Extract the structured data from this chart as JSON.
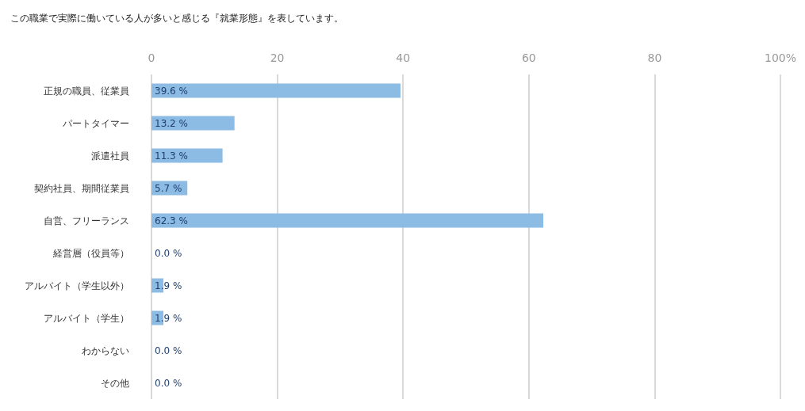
{
  "chart_data": {
    "type": "bar",
    "orientation": "horizontal",
    "title": "この職業で実際に働いている人が多いと感じる『就業形態』を表しています。",
    "categories": [
      "正規の職員、従業員",
      "パートタイマー",
      "派遣社員",
      "契約社員、期間従業員",
      "自営、フリーランス",
      "経営層（役員等）",
      "アルバイト（学生以外）",
      "アルバイト（学生）",
      "わからない",
      "その他"
    ],
    "values": [
      39.6,
      13.2,
      11.3,
      5.7,
      62.3,
      0.0,
      1.9,
      1.9,
      0.0,
      0.0
    ],
    "value_labels": [
      "39.6 %",
      "13.2 %",
      "11.3 %",
      "5.7 %",
      "62.3 %",
      "0.0 %",
      "1.9 %",
      "1.9 %",
      "0.0 %",
      "0.0 %"
    ],
    "color": "#8cbbe4",
    "xlim": [
      0,
      100
    ],
    "xticks": [
      0,
      20,
      40,
      60,
      80,
      {
        "value": 100,
        "label": "100%"
      }
    ],
    "grid": "x"
  }
}
